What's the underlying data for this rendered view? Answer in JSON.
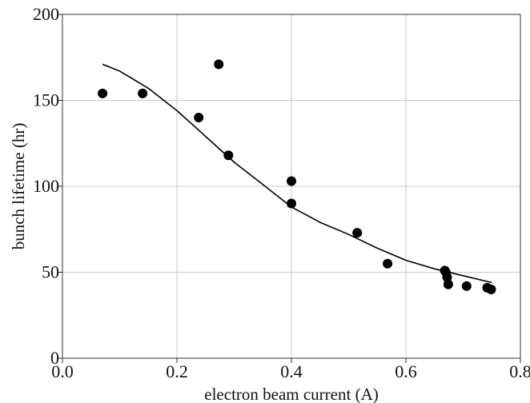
{
  "chart_data": {
    "type": "scatter",
    "xlabel": "electron beam current  (A)",
    "ylabel": "bunch lifetime  (hr)",
    "xlim": [
      0.0,
      0.8
    ],
    "ylim": [
      0,
      200
    ],
    "xticks": [
      "0.0",
      "0.2",
      "0.4",
      "0.6",
      "0.8"
    ],
    "yticks": [
      "0",
      "50",
      "100",
      "150",
      "200"
    ],
    "grid": true,
    "colors": {
      "points": "#000000",
      "fit_line": "#000000",
      "grid": "#c8c8c8",
      "axes": "#333333"
    },
    "series": [
      {
        "type": "scatter",
        "x": [
          0.07,
          0.14,
          0.238,
          0.273,
          0.29,
          0.4,
          0.4,
          0.515,
          0.568,
          0.668,
          0.67,
          0.672,
          0.674,
          0.706,
          0.742,
          0.749
        ],
        "y": [
          154,
          154,
          140,
          171,
          118,
          103,
          90,
          73,
          55,
          51,
          50,
          47,
          43,
          42,
          41,
          40
        ]
      },
      {
        "type": "line",
        "x": [
          0.07,
          0.1,
          0.15,
          0.2,
          0.25,
          0.3,
          0.35,
          0.4,
          0.45,
          0.5,
          0.55,
          0.6,
          0.65,
          0.7,
          0.75
        ],
        "y": [
          171,
          167,
          157,
          144,
          129,
          114,
          101,
          88,
          79,
          72,
          64,
          57,
          52,
          48,
          44
        ]
      }
    ]
  }
}
